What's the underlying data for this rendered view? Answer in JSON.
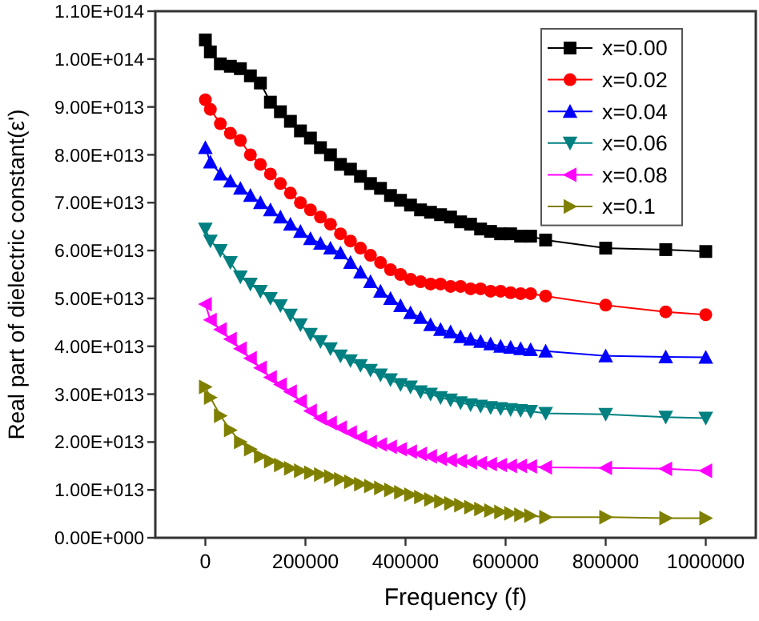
{
  "chart_data": {
    "type": "line",
    "xlabel": "Frequency (f)",
    "ylabel": "Real part of dielectric constant(ε')",
    "x": [
      0,
      10000,
      30000,
      50000,
      70000,
      90000,
      110000,
      130000,
      150000,
      170000,
      190000,
      210000,
      230000,
      250000,
      270000,
      290000,
      310000,
      330000,
      350000,
      370000,
      390000,
      410000,
      430000,
      450000,
      470000,
      490000,
      510000,
      530000,
      550000,
      570000,
      590000,
      610000,
      630000,
      650000,
      680000,
      800000,
      920000,
      1000000
    ],
    "xlim": [
      -100000,
      1100000
    ],
    "xticks": [
      0,
      200000,
      400000,
      600000,
      800000,
      1000000
    ],
    "ylim": [
      0,
      110000000000000.0
    ],
    "yticks": [
      {
        "value": 0,
        "label": "0.00E+000"
      },
      {
        "value": 10000000000000.0,
        "label": "1.00E+013"
      },
      {
        "value": 20000000000000.0,
        "label": "2.00E+013"
      },
      {
        "value": 30000000000000.0,
        "label": "3.00E+013"
      },
      {
        "value": 40000000000000.0,
        "label": "4.00E+013"
      },
      {
        "value": 50000000000000.0,
        "label": "5.00E+013"
      },
      {
        "value": 60000000000000.0,
        "label": "6.00E+013"
      },
      {
        "value": 70000000000000.0,
        "label": "7.00E+013"
      },
      {
        "value": 80000000000000.0,
        "label": "8.00E+013"
      },
      {
        "value": 90000000000000.0,
        "label": "9.00E+013"
      },
      {
        "value": 100000000000000.0,
        "label": "1.00E+014"
      },
      {
        "value": 110000000000000.0,
        "label": "1.10E+014"
      }
    ],
    "grid": false,
    "legend": "top right",
    "line_style": "solid",
    "series": [
      {
        "name": "x=0.00",
        "color": "#000000",
        "marker": "square",
        "values": [
          104000000000000.0,
          101500000000000.0,
          99000000000000.0,
          98500000000000.0,
          98000000000000.0,
          96500000000000.0,
          95000000000000.0,
          91000000000000.0,
          89000000000000.0,
          87000000000000.0,
          85000000000000.0,
          83500000000000.0,
          81500000000000.0,
          80000000000000.0,
          78000000000000.0,
          77000000000000.0,
          75500000000000.0,
          74000000000000.0,
          73000000000000.0,
          71500000000000.0,
          70500000000000.0,
          69500000000000.0,
          68500000000000.0,
          68000000000000.0,
          67500000000000.0,
          67000000000000.0,
          66000000000000.0,
          65500000000000.0,
          64500000000000.0,
          64000000000000.0,
          63500000000000.0,
          63500000000000.0,
          63000000000000.0,
          63000000000000.0,
          62200000000000.0,
          60500000000000.0,
          60200000000000.0,
          59800000000000.0
        ]
      },
      {
        "name": "x=0.02",
        "color": "#ff0000",
        "marker": "circle",
        "values": [
          91500000000000.0,
          89500000000000.0,
          86500000000000.0,
          84500000000000.0,
          83000000000000.0,
          80000000000000.0,
          78000000000000.0,
          76000000000000.0,
          74000000000000.0,
          72000000000000.0,
          70000000000000.0,
          68500000000000.0,
          67000000000000.0,
          65500000000000.0,
          63500000000000.0,
          62000000000000.0,
          60500000000000.0,
          59000000000000.0,
          57500000000000.0,
          56000000000000.0,
          55000000000000.0,
          54000000000000.0,
          53500000000000.0,
          53000000000000.0,
          53000000000000.0,
          52500000000000.0,
          52500000000000.0,
          52000000000000.0,
          52000000000000.0,
          51500000000000.0,
          51500000000000.0,
          51200000000000.0,
          51000000000000.0,
          51000000000000.0,
          50500000000000.0,
          48600000000000.0,
          47200000000000.0,
          46600000000000.0
        ]
      },
      {
        "name": "x=0.04",
        "color": "#0000ff",
        "marker": "triangle",
        "values": [
          81500000000000.0,
          78500000000000.0,
          76000000000000.0,
          74500000000000.0,
          73000000000000.0,
          71500000000000.0,
          70000000000000.0,
          68500000000000.0,
          67000000000000.0,
          65500000000000.0,
          64000000000000.0,
          62500000000000.0,
          61500000000000.0,
          60500000000000.0,
          59500000000000.0,
          57500000000000.0,
          55500000000000.0,
          53500000000000.0,
          51500000000000.0,
          50000000000000.0,
          48500000000000.0,
          47000000000000.0,
          46000000000000.0,
          44500000000000.0,
          43500000000000.0,
          43000000000000.0,
          42000000000000.0,
          41500000000000.0,
          41000000000000.0,
          40500000000000.0,
          40000000000000.0,
          39800000000000.0,
          39500000000000.0,
          39300000000000.0,
          39000000000000.0,
          38000000000000.0,
          37800000000000.0,
          37700000000000.0
        ]
      },
      {
        "name": "x=0.06",
        "color": "#008080",
        "marker": "triangle-down",
        "values": [
          64500000000000.0,
          62000000000000.0,
          60000000000000.0,
          57500000000000.0,
          54500000000000.0,
          53000000000000.0,
          51500000000000.0,
          50000000000000.0,
          48500000000000.0,
          46500000000000.0,
          44500000000000.0,
          42500000000000.0,
          41000000000000.0,
          39500000000000.0,
          38000000000000.0,
          37000000000000.0,
          36000000000000.0,
          35000000000000.0,
          34000000000000.0,
          33000000000000.0,
          32000000000000.0,
          31500000000000.0,
          30500000000000.0,
          30000000000000.0,
          29300000000000.0,
          28800000000000.0,
          28200000000000.0,
          27800000000000.0,
          27500000000000.0,
          27200000000000.0,
          27000000000000.0,
          26800000000000.0,
          26600000000000.0,
          26400000000000.0,
          26000000000000.0,
          25800000000000.0,
          25200000000000.0,
          25000000000000.0
        ]
      },
      {
        "name": "x=0.08",
        "color": "#ff00ff",
        "marker": "triangle-left",
        "values": [
          48800000000000.0,
          45500000000000.0,
          43500000000000.0,
          41500000000000.0,
          39500000000000.0,
          37500000000000.0,
          35500000000000.0,
          33500000000000.0,
          32000000000000.0,
          30500000000000.0,
          28500000000000.0,
          26500000000000.0,
          25000000000000.0,
          24000000000000.0,
          23000000000000.0,
          22000000000000.0,
          21000000000000.0,
          20000000000000.0,
          19500000000000.0,
          19000000000000.0,
          18500000000000.0,
          18000000000000.0,
          17500000000000.0,
          17000000000000.0,
          16500000000000.0,
          16200000000000.0,
          16000000000000.0,
          15800000000000.0,
          15600000000000.0,
          15400000000000.0,
          15200000000000.0,
          15000000000000.0,
          15000000000000.0,
          14900000000000.0,
          14700000000000.0,
          14600000000000.0,
          14400000000000.0,
          14000000000000.0
        ]
      },
      {
        "name": "x=0.1",
        "color": "#808000",
        "marker": "triangle-right",
        "values": [
          31500000000000.0,
          29300000000000.0,
          25500000000000.0,
          22500000000000.0,
          20000000000000.0,
          18500000000000.0,
          17000000000000.0,
          16000000000000.0,
          15200000000000.0,
          14500000000000.0,
          14000000000000.0,
          13600000000000.0,
          13200000000000.0,
          12800000000000.0,
          12200000000000.0,
          11700000000000.0,
          11200000000000.0,
          10800000000000.0,
          10400000000000.0,
          10000000000000.0,
          9500000000000.0,
          9000000000000.0,
          8500000000000.0,
          8000000000000.0,
          7600000000000.0,
          7200000000000.0,
          6800000000000.0,
          6400000000000.0,
          6000000000000.0,
          5700000000000.0,
          5400000000000.0,
          5100000000000.0,
          4800000000000.0,
          4600000000000.0,
          4300000000000.0,
          4300000000000.0,
          4100000000000.0,
          4100000000000.0
        ]
      }
    ]
  }
}
